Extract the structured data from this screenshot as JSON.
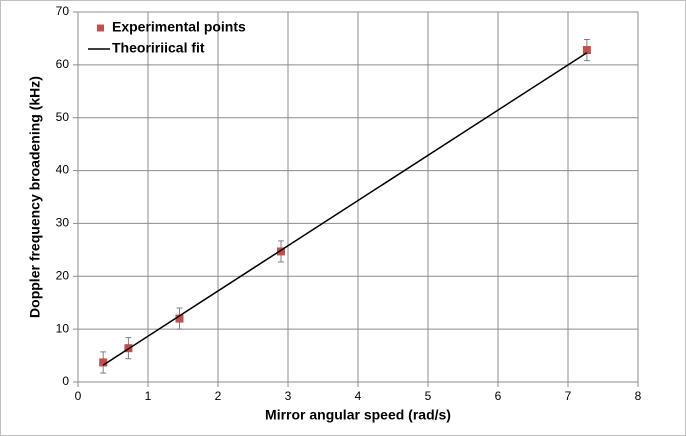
{
  "chart_data": {
    "type": "scatter",
    "xlabel": "Mirror angular speed (rad/s)",
    "ylabel": "Doppler  frequency broadening (kHz)",
    "xlim": [
      0,
      8
    ],
    "xticks": [
      0,
      1,
      2,
      3,
      4,
      5,
      6,
      7,
      8
    ],
    "ylim": [
      0,
      70
    ],
    "yticks": [
      0,
      10,
      20,
      30,
      40,
      50,
      60,
      70
    ],
    "grid": true,
    "legend": "upper left",
    "series": [
      {
        "name": "Experimental points",
        "type": "scatter",
        "color": "#c0504d",
        "x": [
          0.36,
          0.72,
          1.45,
          2.9,
          7.27
        ],
        "values": [
          3.7,
          6.4,
          12.0,
          24.7,
          62.8
        ],
        "errors": [
          2,
          2,
          2,
          2,
          2
        ]
      },
      {
        "name": "Theoririical fit",
        "type": "line",
        "color": "#000000",
        "x": [
          0.36,
          7.27
        ],
        "values": [
          3.2,
          62.3
        ]
      }
    ]
  }
}
